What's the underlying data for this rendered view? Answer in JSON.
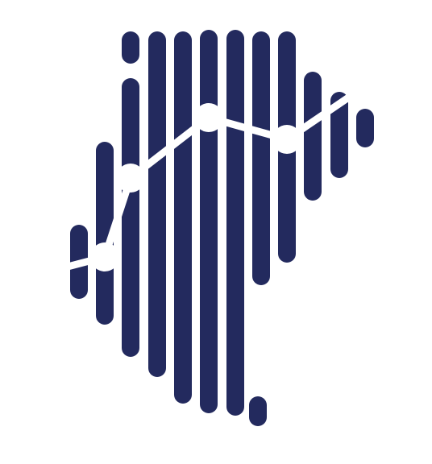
{
  "logo": {
    "name": "bar-stripes-trend-logo-icon",
    "bar_color": "#232a5e",
    "line_color": "#ffffff",
    "background_color": "#ffffff"
  }
}
